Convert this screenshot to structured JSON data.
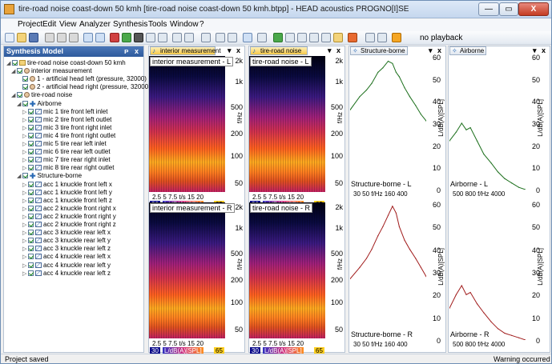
{
  "window": {
    "title": "tire-road noise coast-down 50 kmh [tire-road noise coast-down 50 kmh.btpp] - HEAD acoustics PROGNO[I]SE",
    "min": "—",
    "max": "▭",
    "close": "X"
  },
  "menu": [
    "Project",
    "Edit",
    "View",
    "Analyzer",
    "Synthesis",
    "Tools",
    "Window",
    "?"
  ],
  "toolbar": {
    "playback": "no playback"
  },
  "panel": {
    "title": "Synthesis Model",
    "pin": "ᴘ",
    "close": "x"
  },
  "tree": [
    {
      "label": "tire-road noise coast-down 50 kmh",
      "icon": "folder"
    },
    {
      "label": "interior measurement",
      "icon": "head"
    },
    {
      "label": "1 - artificial head left (pressure, 32000)",
      "icon": "head"
    },
    {
      "label": "2 - artificial head right (pressure, 32000)",
      "icon": "head"
    },
    {
      "label": "tire-road noise",
      "icon": "head"
    },
    {
      "label": "Airborne",
      "icon": "plus"
    },
    {
      "label": "mic 1 tire front left inlet",
      "icon": "chart"
    },
    {
      "label": "mic 2 tire front left outlet",
      "icon": "chart"
    },
    {
      "label": "mic 3 tire front right inlet",
      "icon": "chart"
    },
    {
      "label": "mic 4 tire front right outlet",
      "icon": "chart"
    },
    {
      "label": "mic 5 tire rear left inlet",
      "icon": "chart"
    },
    {
      "label": "mic 6 tire rear left outlet",
      "icon": "chart"
    },
    {
      "label": "mic 7 tire rear right inlet",
      "icon": "chart"
    },
    {
      "label": "mic 8 tire rear right outlet",
      "icon": "chart"
    },
    {
      "label": "Structure-borne",
      "icon": "plus"
    },
    {
      "label": "acc 1 knuckle front left x",
      "icon": "chart"
    },
    {
      "label": "acc 1 knuckle front left y",
      "icon": "chart"
    },
    {
      "label": "acc 1 knuckle front left z",
      "icon": "chart"
    },
    {
      "label": "acc 2 knuckle front right x",
      "icon": "chart"
    },
    {
      "label": "acc 2 knuckle front right y",
      "icon": "chart"
    },
    {
      "label": "acc 2 knuckle front right z",
      "icon": "chart"
    },
    {
      "label": "acc 3 knuckle rear left x",
      "icon": "chart"
    },
    {
      "label": "acc 3 knuckle rear left y",
      "icon": "chart"
    },
    {
      "label": "acc 3 knuckle rear left z",
      "icon": "chart"
    },
    {
      "label": "acc 4 knuckle rear left x",
      "icon": "chart"
    },
    {
      "label": "acc 4 knuckle rear left y",
      "icon": "chart"
    },
    {
      "label": "acc 4 knuckle rear left z",
      "icon": "chart"
    }
  ],
  "tabs": [
    {
      "label": "interior measurement",
      "close": "x",
      "menu": "▾"
    },
    {
      "label": "tire-road noise",
      "close": "x",
      "menu": "▾"
    },
    {
      "label": "Structure-borne",
      "close": "x",
      "menu": "▾"
    },
    {
      "label": "Airborne",
      "close": "x",
      "menu": "▾"
    }
  ],
  "spectrograms": {
    "yticks": [
      "2k",
      "1k",
      "500",
      "200",
      "100",
      "50"
    ],
    "ylabel": "f/Hz",
    "xticks": "2.5  5  7.5 t/s      15    20",
    "colorbar": {
      "low": "30",
      "mid": "L/dB(A)[SPL]",
      "high": "65"
    },
    "labels": [
      "interior measurement - L",
      "tire-road noise - L",
      "interior measurement - R",
      "tire-road noise - R"
    ]
  },
  "lineplots": {
    "yticks": [
      "60",
      "50",
      "40",
      "30",
      "20",
      "10",
      "0"
    ],
    "ylabel": "L/dB(A)[SPL]",
    "structure_xticks": "30  50  f/Hz  160   400",
    "airborne_xticks": "500  800  f/Hz      4000",
    "labels": [
      "Structure-borne - L",
      "Airborne - L",
      "Structure-borne - R",
      "Airborne - R"
    ]
  },
  "status": {
    "left": "Project saved",
    "right": "Warning occurred"
  },
  "chart_data": [
    {
      "type": "line",
      "title": "Structure-borne - L",
      "xlabel": "f/Hz",
      "ylabel": "L/dB(A)[SPL]",
      "ylim": [
        0,
        60
      ],
      "x": [
        20,
        30,
        40,
        50,
        65,
        80,
        100,
        120,
        140,
        160,
        200,
        250,
        320,
        400,
        500
      ],
      "y": [
        36,
        42,
        45,
        48,
        53,
        55,
        58,
        57,
        53,
        51,
        46,
        42,
        38,
        34,
        31
      ],
      "color": "#1a6e1a"
    },
    {
      "type": "line",
      "title": "Airborne - L",
      "xlabel": "f/Hz",
      "ylabel": "L/dB(A)[SPL]",
      "ylim": [
        0,
        60
      ],
      "x": [
        400,
        500,
        600,
        700,
        800,
        1000,
        1250,
        1600,
        2000,
        2500,
        3150,
        4000,
        5000
      ],
      "y": [
        22,
        26,
        30,
        27,
        28,
        22,
        16,
        12,
        8,
        5,
        3,
        1,
        0
      ],
      "color": "#1a6e1a"
    },
    {
      "type": "line",
      "title": "Structure-borne - R",
      "xlabel": "f/Hz",
      "ylabel": "L/dB(A)[SPL]",
      "ylim": [
        0,
        60
      ],
      "x": [
        20,
        30,
        40,
        50,
        65,
        80,
        100,
        120,
        140,
        160,
        200,
        250,
        320,
        400,
        500
      ],
      "y": [
        27,
        32,
        36,
        40,
        46,
        50,
        55,
        59,
        56,
        50,
        44,
        40,
        36,
        32,
        28
      ],
      "color": "#a01a1a"
    },
    {
      "type": "line",
      "title": "Airborne - R",
      "xlabel": "f/Hz",
      "ylabel": "L/dB(A)[SPL]",
      "ylim": [
        0,
        60
      ],
      "x": [
        400,
        500,
        600,
        700,
        800,
        1000,
        1250,
        1600,
        2000,
        2500,
        3150,
        4000,
        5000
      ],
      "y": [
        14,
        20,
        24,
        20,
        21,
        16,
        12,
        8,
        5,
        3,
        2,
        1,
        0
      ],
      "color": "#a01a1a"
    }
  ]
}
